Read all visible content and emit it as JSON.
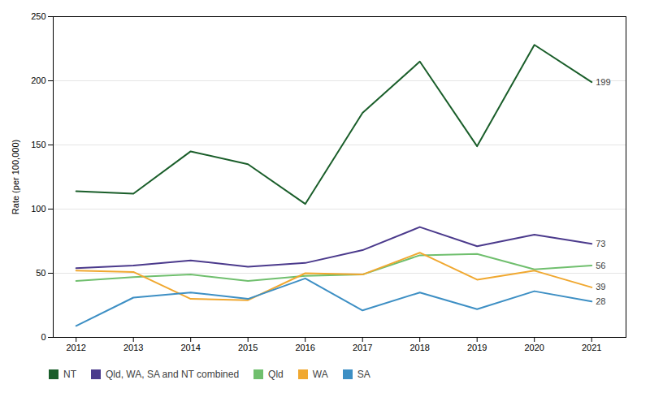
{
  "chart_data": {
    "type": "line",
    "x": [
      2012,
      2013,
      2014,
      2015,
      2016,
      2017,
      2018,
      2019,
      2020,
      2021
    ],
    "series": [
      {
        "name": "NT",
        "color": "#1a5e2a",
        "values": [
          114,
          112,
          145,
          135,
          104,
          175,
          215,
          149,
          228,
          199
        ]
      },
      {
        "name": "Qld, WA, SA and NT combined",
        "color": "#4b3a8c",
        "values": [
          54,
          56,
          60,
          55,
          58,
          68,
          86,
          71,
          80,
          73
        ]
      },
      {
        "name": "Qld",
        "color": "#70bf6e",
        "values": [
          44,
          47,
          49,
          44,
          48,
          49,
          64,
          65,
          53,
          56
        ]
      },
      {
        "name": "WA",
        "color": "#f0a830",
        "values": [
          52,
          51,
          30,
          29,
          50,
          49,
          66,
          45,
          52,
          39
        ]
      },
      {
        "name": "SA",
        "color": "#3d8fc4",
        "values": [
          9,
          31,
          35,
          30,
          46,
          21,
          35,
          22,
          36,
          28
        ]
      }
    ],
    "annotations": [
      {
        "text": "199",
        "x": 2021,
        "y": 199
      },
      {
        "text": "73",
        "x": 2021,
        "y": 73
      },
      {
        "text": "56",
        "x": 2021,
        "y": 56
      },
      {
        "text": "39",
        "x": 2021,
        "y": 39
      },
      {
        "text": "28",
        "x": 2021,
        "y": 28
      }
    ],
    "ylabel": "Rate (per 100,000)",
    "xlim": [
      2011.6,
      2021.6
    ],
    "xticks": [
      2012,
      2013,
      2014,
      2015,
      2016,
      2017,
      2018,
      2019,
      2020,
      2021
    ],
    "ylim": [
      0,
      250
    ],
    "yticks": [
      0,
      50,
      100,
      150,
      200,
      250
    ],
    "grid": true,
    "legend": "bottom"
  }
}
